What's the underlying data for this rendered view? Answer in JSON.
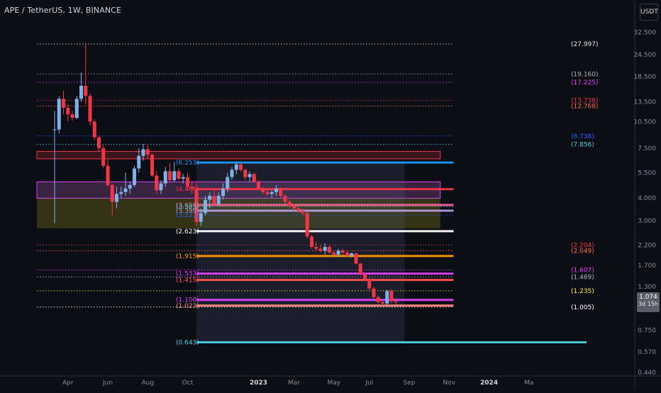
{
  "header": {
    "title": "APE / TetherUS, 1W, BINANCE",
    "unit": "USDT"
  },
  "price_badge": {
    "price": "1.074",
    "countdown": "3d 15h"
  },
  "colors": {
    "background": "#0c0e15",
    "up": "#7fb1ea",
    "down": "#f23645",
    "axis_text": "#848e9c"
  },
  "chart_data": {
    "type": "candlestick",
    "y_scale": "log",
    "ylim": [
      0.42,
      38
    ],
    "y_ticks": [
      "32.500",
      "24.500",
      "18.500",
      "13.500",
      "10.500",
      "7.500",
      "5.500",
      "4.000",
      "3.000",
      "2.200",
      "1.700",
      "1.300",
      "1.000",
      "0.750",
      "0.570",
      "0.440"
    ],
    "x_ticks": [
      "Apr",
      "Jun",
      "Aug",
      "Oct",
      "2023",
      "Mar",
      "May",
      "Jul",
      "Sep",
      "Nov",
      "2024",
      "Ma"
    ],
    "x_range_weeks": [
      -4,
      120
    ],
    "level_labels": [
      {
        "text": "(27.997)",
        "value": 27.997,
        "color": "#e0e3eb",
        "style": "dotted",
        "from": -4,
        "to": 90
      },
      {
        "text": "(19.160)",
        "value": 19.16,
        "color": "#b2b5be",
        "style": "dotted",
        "from": -4,
        "to": 90
      },
      {
        "text": "(17.225)",
        "value": 17.225,
        "color": "#e040fb",
        "style": "dotted",
        "from": -4,
        "to": 90
      },
      {
        "text": "(13.738)",
        "value": 13.738,
        "color": "#f23645",
        "style": "dotted",
        "from": -4,
        "to": 90
      },
      {
        "text": "(12.768)",
        "value": 12.768,
        "color": "#ff7043",
        "style": "dotted",
        "from": -4,
        "to": 90
      },
      {
        "text": "(8.738)",
        "value": 8.738,
        "color": "#2962ff",
        "style": "dotted",
        "from": -4,
        "to": 90
      },
      {
        "text": "(7.856)",
        "value": 7.856,
        "color": "#4dd0e1",
        "style": "dotted",
        "from": -4,
        "to": 90
      },
      {
        "text": "(6.253)",
        "value": 6.253,
        "color": "#2196f3",
        "style": "solid",
        "from": 32,
        "to": 90
      },
      {
        "text": "(4.466)",
        "value": 4.466,
        "color": "#f23645",
        "style": "solid",
        "from": 32,
        "to": 90
      },
      {
        "text": "(3.656)",
        "value": 3.656,
        "color": "#f06292",
        "style": "solid",
        "from": 32,
        "to": 90
      },
      {
        "text": "(3.583)",
        "value": 3.583,
        "color": "#4dd0e1",
        "style": "dotted",
        "from": 32,
        "to": 90
      },
      {
        "text": "(3.399)",
        "value": 3.399,
        "color": "#b39ddb",
        "style": "solid",
        "from": 32,
        "to": 90
      },
      {
        "text": "(3.221)",
        "value": 3.221,
        "color": "#2962ff",
        "style": "dotted",
        "from": 32,
        "to": 90
      },
      {
        "text": "(2.623)",
        "value": 2.623,
        "color": "#ffffff",
        "style": "solid",
        "from": 32,
        "to": 90
      },
      {
        "text": "(2.204)",
        "value": 2.204,
        "color": "#f23645",
        "style": "dotted",
        "from": -4,
        "to": 90
      },
      {
        "text": "(2.049)",
        "value": 2.049,
        "color": "#ff7043",
        "style": "dotted",
        "from": -4,
        "to": 90
      },
      {
        "text": "(1.915)",
        "value": 1.915,
        "color": "#ff9800",
        "style": "solid",
        "from": 32,
        "to": 90
      },
      {
        "text": "(1.607)",
        "value": 1.607,
        "color": "#e040fb",
        "style": "dotted",
        "from": -4,
        "to": 90
      },
      {
        "text": "(1.533)",
        "value": 1.533,
        "color": "#e040fb",
        "style": "solid",
        "from": 32,
        "to": 90
      },
      {
        "text": "(1.469)",
        "value": 1.469,
        "color": "#b2b5be",
        "style": "dotted",
        "from": -4,
        "to": 90
      },
      {
        "text": "(1.415)",
        "value": 1.415,
        "color": "#ff5252",
        "style": "solid",
        "from": 32,
        "to": 90
      },
      {
        "text": "(1.235)",
        "value": 1.235,
        "color": "#ffeb3b",
        "style": "dotted",
        "from": -4,
        "to": 90
      },
      {
        "text": "(1.100)",
        "value": 1.1,
        "color": "#e040fb",
        "style": "solid",
        "from": 32,
        "to": 90
      },
      {
        "text": "(1.023)",
        "value": 1.023,
        "color": "#ff8a80",
        "style": "solid",
        "from": 32,
        "to": 90
      },
      {
        "text": "(1.005)",
        "value": 1.005,
        "color": "#ffffff",
        "style": "dotted",
        "from": -4,
        "to": 90
      },
      {
        "text": "(0.643)",
        "value": 0.643,
        "color": "#4dd0e1",
        "style": "solid",
        "from": 32,
        "to": 120
      }
    ],
    "zones": [
      {
        "from": -4,
        "to": 87,
        "top": 7.2,
        "bottom": 6.55,
        "fill": "#f2364533",
        "stroke": "#f23645"
      },
      {
        "from": -4,
        "to": 87,
        "top": 4.9,
        "bottom": 3.98,
        "fill": "#ba68c840",
        "stroke": "#e040fb"
      },
      {
        "from": -4,
        "to": 87,
        "top": 3.98,
        "bottom": 2.72,
        "fill": "#827717",
        "stroke": ""
      },
      {
        "from": 32,
        "to": 79,
        "top": 6.253,
        "bottom": 0.643,
        "fill": "#5d6b8a",
        "stroke": ""
      }
    ],
    "candles": [
      [
        9.5,
        12.0,
        2.9,
        9.5
      ],
      [
        9.5,
        14.5,
        9.0,
        14.0
      ],
      [
        14.0,
        15.5,
        11.5,
        12.5
      ],
      [
        12.5,
        13.0,
        10.5,
        11.5
      ],
      [
        11.5,
        12.0,
        10.6,
        11.0
      ],
      [
        11.0,
        14.5,
        10.8,
        14.0
      ],
      [
        14.0,
        19.5,
        13.5,
        16.5
      ],
      [
        16.5,
        27.997,
        13.0,
        14.5
      ],
      [
        14.5,
        15.0,
        10.0,
        10.5
      ],
      [
        10.5,
        10.8,
        8.3,
        8.6
      ],
      [
        8.6,
        8.8,
        7.2,
        7.5
      ],
      [
        7.5,
        7.8,
        5.8,
        6.0
      ],
      [
        6.0,
        6.5,
        4.6,
        4.7
      ],
      [
        4.7,
        4.8,
        3.2,
        3.8
      ],
      [
        3.8,
        4.6,
        3.5,
        4.2
      ],
      [
        4.2,
        4.6,
        4.0,
        4.3
      ],
      [
        4.3,
        5.5,
        4.1,
        4.5
      ],
      [
        4.5,
        4.9,
        4.2,
        4.7
      ],
      [
        4.7,
        6.0,
        4.6,
        5.8
      ],
      [
        5.8,
        7.5,
        5.5,
        6.8
      ],
      [
        6.8,
        7.9,
        6.4,
        7.4
      ],
      [
        7.4,
        7.8,
        6.6,
        6.9
      ],
      [
        6.9,
        7.0,
        5.2,
        5.3
      ],
      [
        5.3,
        5.6,
        4.2,
        4.4
      ],
      [
        4.4,
        5.0,
        4.2,
        4.8
      ],
      [
        4.8,
        5.9,
        4.6,
        5.6
      ],
      [
        5.6,
        6.2,
        4.8,
        5.0
      ],
      [
        5.0,
        6.3,
        4.9,
        5.6
      ],
      [
        5.6,
        5.8,
        5.0,
        5.1
      ],
      [
        5.1,
        5.4,
        4.8,
        5.2
      ],
      [
        5.2,
        5.5,
        4.4,
        4.6
      ],
      [
        4.6,
        4.9,
        4.2,
        4.5
      ],
      [
        4.5,
        4.8,
        2.8,
        2.95
      ],
      [
        2.95,
        3.5,
        2.8,
        3.3
      ],
      [
        3.3,
        4.1,
        3.2,
        3.9
      ],
      [
        3.9,
        4.3,
        3.5,
        4.1
      ],
      [
        4.1,
        4.5,
        3.6,
        3.7
      ],
      [
        3.7,
        4.3,
        3.6,
        4.1
      ],
      [
        4.1,
        4.8,
        3.9,
        4.5
      ],
      [
        4.5,
        5.5,
        4.3,
        5.2
      ],
      [
        5.2,
        5.9,
        5.0,
        5.7
      ],
      [
        5.7,
        6.3,
        5.4,
        6.1
      ],
      [
        6.1,
        6.2,
        5.6,
        5.7
      ],
      [
        5.7,
        5.8,
        5.0,
        5.2
      ],
      [
        5.2,
        5.6,
        4.9,
        5.4
      ],
      [
        5.4,
        5.5,
        4.8,
        4.9
      ],
      [
        4.9,
        5.0,
        4.4,
        4.5
      ],
      [
        4.5,
        4.6,
        4.2,
        4.3
      ],
      [
        4.3,
        4.5,
        4.1,
        4.2
      ],
      [
        4.2,
        4.4,
        4.0,
        4.3
      ],
      [
        4.3,
        4.7,
        4.1,
        4.5
      ],
      [
        4.5,
        4.6,
        4.0,
        4.1
      ],
      [
        4.1,
        4.2,
        3.7,
        3.8
      ],
      [
        3.8,
        3.9,
        3.5,
        3.6
      ],
      [
        3.6,
        3.7,
        3.4,
        3.5
      ],
      [
        3.5,
        3.6,
        3.3,
        3.4
      ],
      [
        3.4,
        3.5,
        3.2,
        3.3
      ],
      [
        3.3,
        3.35,
        2.4,
        2.45
      ],
      [
        2.45,
        2.5,
        2.1,
        2.15
      ],
      [
        2.15,
        2.3,
        2.05,
        2.1
      ],
      [
        2.1,
        2.2,
        2.0,
        2.05
      ],
      [
        2.05,
        2.25,
        1.95,
        2.15
      ],
      [
        2.15,
        2.2,
        1.98,
        2.0
      ],
      [
        2.0,
        2.05,
        1.9,
        1.95
      ],
      [
        1.95,
        2.1,
        1.9,
        2.05
      ],
      [
        2.05,
        2.1,
        1.95,
        2.0
      ],
      [
        2.0,
        2.05,
        1.9,
        1.92
      ],
      [
        1.92,
        2.0,
        1.88,
        1.98
      ],
      [
        1.98,
        2.0,
        1.72,
        1.74
      ],
      [
        1.74,
        1.76,
        1.5,
        1.52
      ],
      [
        1.52,
        1.55,
        1.4,
        1.42
      ],
      [
        1.42,
        1.45,
        1.25,
        1.27
      ],
      [
        1.27,
        1.3,
        1.12,
        1.14
      ],
      [
        1.14,
        1.16,
        1.05,
        1.07
      ],
      [
        1.07,
        1.1,
        1.02,
        1.05
      ],
      [
        1.05,
        1.25,
        1.03,
        1.23
      ],
      [
        1.23,
        1.26,
        1.05,
        1.08
      ],
      [
        1.08,
        1.12,
        1.04,
        1.074
      ]
    ]
  }
}
